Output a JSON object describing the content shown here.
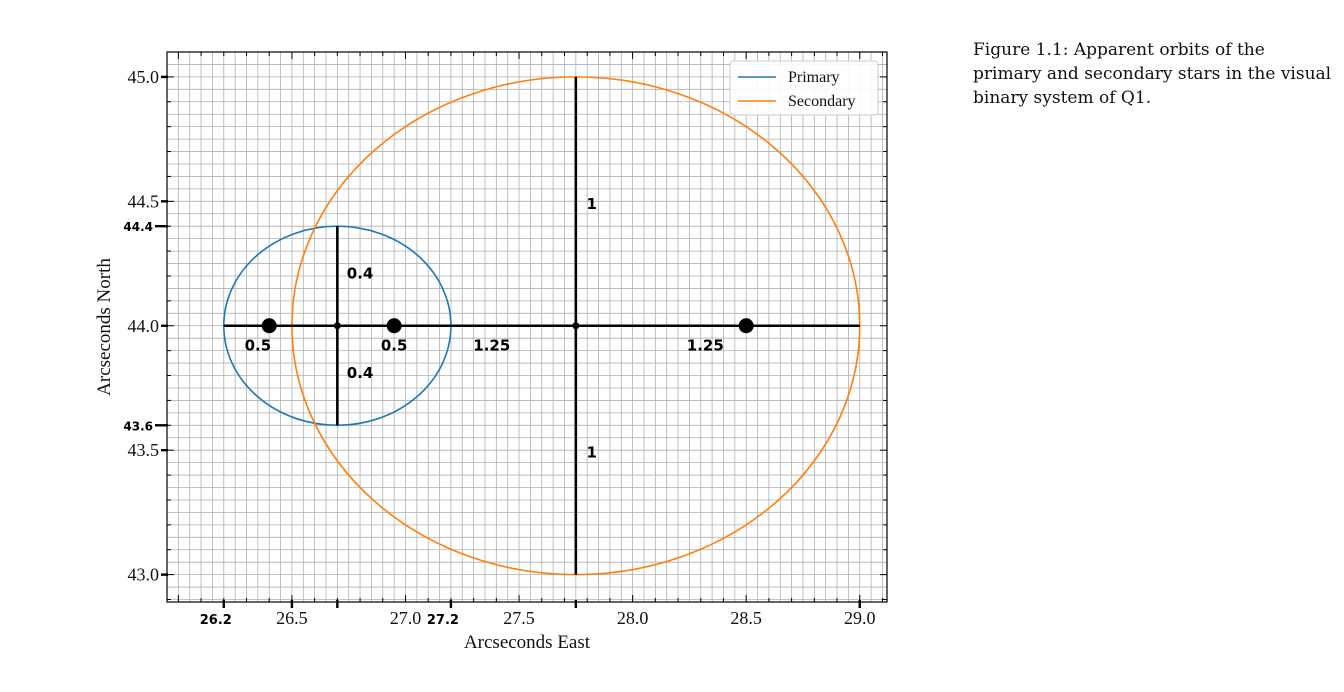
{
  "caption": "Figure 1.1: Apparent orbits of the primary and secondary stars in the visual binary system of Q1.",
  "colors": {
    "primary": "#1f77b4",
    "secondary": "#ff7f0e",
    "grid": "#b0b0b0",
    "ink": "#000000"
  },
  "chart_data": {
    "type": "line",
    "xlabel": "Arcseconds East",
    "ylabel": "Arcseconds North",
    "xlim": [
      25.95,
      29.12
    ],
    "ylim": [
      42.89,
      45.1
    ],
    "xticks": [
      26.5,
      27.0,
      27.5,
      28.0,
      28.5,
      29.0
    ],
    "xtick_labels": [
      "26.5",
      "27.0",
      "27.5",
      "28.0",
      "28.5",
      "29.0"
    ],
    "yticks": [
      43.0,
      43.5,
      44.0,
      44.5,
      45.0
    ],
    "ytick_labels": [
      "43.0",
      "43.5",
      "44.0",
      "44.5",
      "45.0"
    ],
    "grid": true,
    "legend_position": "top-right",
    "series": [
      {
        "name": "Primary",
        "shape": "ellipse",
        "center": [
          26.7,
          44.0
        ],
        "semi_x": 0.5,
        "semi_y": 0.4,
        "color": "#1f77b4"
      },
      {
        "name": "Secondary",
        "shape": "ellipse",
        "center": [
          27.75,
          44.0
        ],
        "semi_x": 1.25,
        "semi_y": 1.0,
        "color": "#ff7f0e"
      }
    ],
    "annotations": {
      "major_axis": {
        "x": [
          26.2,
          29.0
        ],
        "y": 44.0
      },
      "minor_axes": [
        {
          "x": 26.7,
          "y": [
            43.6,
            44.4
          ]
        },
        {
          "x": 27.75,
          "y": [
            43.0,
            45.0
          ]
        }
      ],
      "foci": [
        [
          26.4,
          44.0
        ],
        [
          26.95,
          44.0
        ],
        [
          28.5,
          44.0
        ]
      ],
      "centers": [
        [
          26.7,
          44.0
        ],
        [
          27.75,
          44.0
        ]
      ],
      "handwritten_labels": [
        {
          "text": "1",
          "x": 27.82,
          "y": 44.47
        },
        {
          "text": "0.4",
          "x": 26.8,
          "y": 44.19
        },
        {
          "text": "0.5",
          "x": 26.35,
          "y": 43.9
        },
        {
          "text": "0.5",
          "x": 26.95,
          "y": 43.9
        },
        {
          "text": "1.25",
          "x": 27.38,
          "y": 43.9
        },
        {
          "text": "1.25",
          "x": 28.32,
          "y": 43.9
        },
        {
          "text": "0.4",
          "x": 26.8,
          "y": 43.79
        },
        {
          "text": "1",
          "x": 27.82,
          "y": 43.47
        }
      ],
      "handwritten_y_ticks": [
        {
          "text": "44.4",
          "y": 44.4
        },
        {
          "text": "43.6",
          "y": 43.6
        }
      ],
      "handwritten_x_ticks": [
        {
          "text": "26.2",
          "x": 26.2
        },
        {
          "text": "27.2",
          "x": 27.2
        }
      ],
      "handwritten_x_marks": [
        26.2,
        26.5,
        26.7,
        27.2,
        27.75,
        29.0
      ]
    }
  }
}
